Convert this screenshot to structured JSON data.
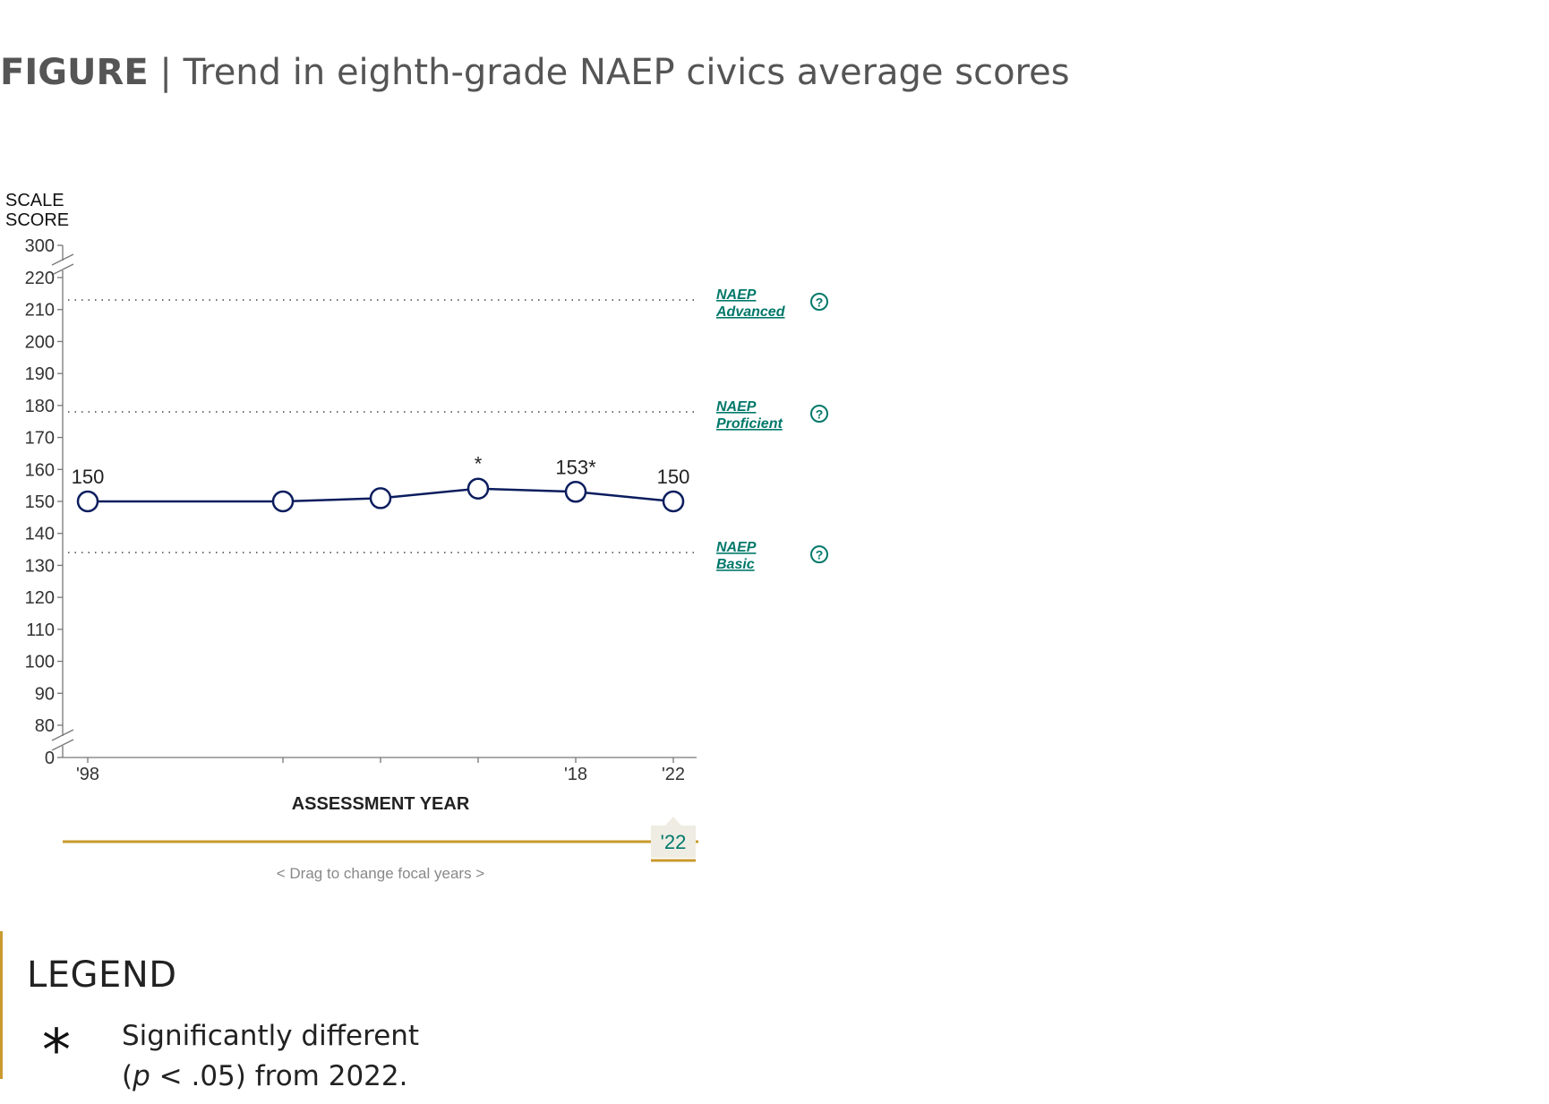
{
  "figure": {
    "prefix": "FIGURE",
    "separator": "|",
    "title": "Trend in eighth-grade NAEP civics average scores"
  },
  "chart_data": {
    "type": "line",
    "y_axis_label_line1": "SCALE",
    "y_axis_label_line2": "SCORE",
    "x_axis_label": "ASSESSMENT YEAR",
    "y_ticks": [
      "300",
      "220",
      "210",
      "200",
      "190",
      "180",
      "170",
      "160",
      "150",
      "140",
      "130",
      "120",
      "110",
      "100",
      "90",
      "80",
      "0"
    ],
    "x_ticks": [
      {
        "x": 1998,
        "label": "'98"
      },
      {
        "x": 2006,
        "label": ""
      },
      {
        "x": 2010,
        "label": ""
      },
      {
        "x": 2014,
        "label": ""
      },
      {
        "x": 2018,
        "label": "'18"
      },
      {
        "x": 2022,
        "label": "'22"
      }
    ],
    "xlim": [
      1998,
      2022
    ],
    "ylim": [
      80,
      220
    ],
    "axis_breaks": [
      "80-0",
      "220-300"
    ],
    "series": [
      {
        "color": "#0b1d5e",
        "points": [
          {
            "x": 1998,
            "y": 150,
            "label": "150"
          },
          {
            "x": 2006,
            "y": 150,
            "label": ""
          },
          {
            "x": 2010,
            "y": 151,
            "label": ""
          },
          {
            "x": 2014,
            "y": 154,
            "label": "*"
          },
          {
            "x": 2018,
            "y": 153,
            "label": "153*"
          },
          {
            "x": 2022,
            "y": 150,
            "label": "150"
          }
        ]
      }
    ],
    "achievement_levels": [
      {
        "line1": "NAEP",
        "line2": "Advanced",
        "y": 213
      },
      {
        "line1": "NAEP",
        "line2": "Proficient",
        "y": 178
      },
      {
        "line1": "NAEP",
        "line2": "Basic",
        "y": 134
      }
    ],
    "link_color": "#00786a",
    "grid": false,
    "legend_position": "bottom"
  },
  "slider": {
    "value_label": "'22",
    "hint": "<  Drag to change focal years  >",
    "color": "#c99a2e"
  },
  "legend": {
    "heading": "LEGEND",
    "symbol": "*",
    "text_line1": "Significantly different",
    "text_line2_italic": "p",
    "text_line2_rest": " < .05) from 2022.",
    "text_line2_open": "("
  }
}
